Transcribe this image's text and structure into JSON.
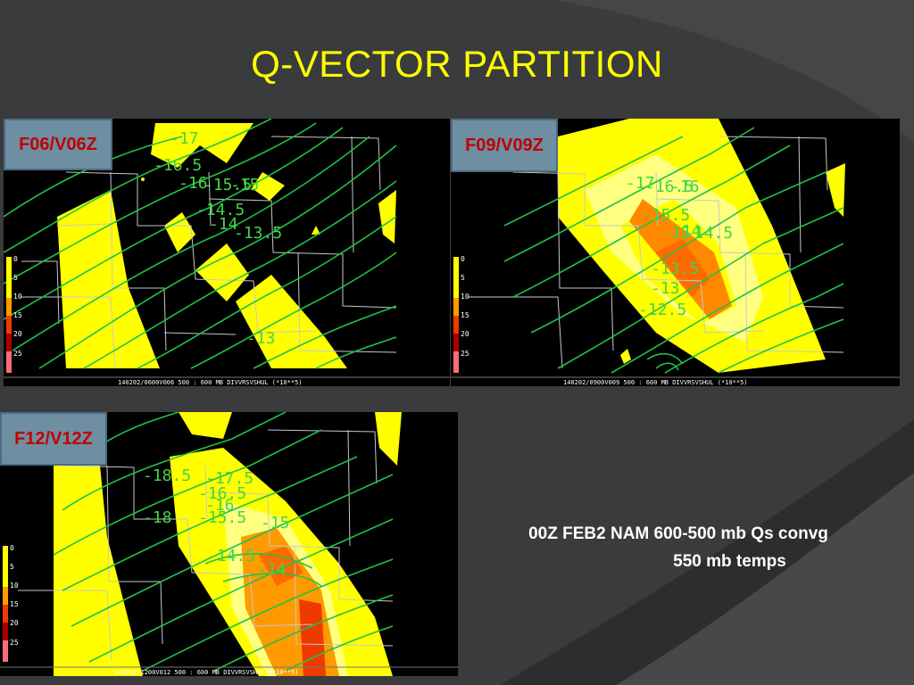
{
  "slide": {
    "title": "Q-VECTOR PARTITION",
    "caption_line1": "00Z FEB2 NAM 600-500 mb Qs convg",
    "caption_line2": "550 mb temps"
  },
  "colors": {
    "title": "#ffff00",
    "label_text": "#c00000",
    "label_bg": "#6e8ea2",
    "contour": "#1fc24a",
    "fill_yellow": "#ffff00",
    "fill_lightyellow": "#ffff80",
    "fill_orange": "#ff9a00",
    "fill_darkorange": "#ff6a00",
    "fill_red": "#ee3a00"
  },
  "scale": {
    "ticks": [
      "0",
      "5",
      "10",
      "15",
      "20",
      "25"
    ]
  },
  "panels": [
    {
      "label": "F06/V06Z",
      "footer": "140202/0600V006  500 : 600 MB  DIVVRSVSHUL (*10**5)",
      "contour_labels": [
        "-17",
        "-16.5",
        "-16",
        "-15.5",
        "-15",
        "-14.5",
        "-14",
        "-13.5",
        "-13"
      ]
    },
    {
      "label": "F09/V09Z",
      "footer": "140202/0900V009  500 : 600 MB  DIVVRSVSHUL (*10**5)",
      "contour_labels": [
        "-17",
        "-16.5",
        "-16",
        "-15.5",
        "-15",
        "-14.5",
        "-14",
        "-13.5",
        "-13",
        "-12.5"
      ]
    },
    {
      "label": "F12/V12Z",
      "footer": "140202/1200V012  500 : 600 MB  DIVVRSVSHUL (*10**5)",
      "contour_labels": [
        "-18.5",
        "-18",
        "-17.5",
        "-16.5",
        "-16",
        "-15.5",
        "-15",
        "-14.5",
        "-14"
      ]
    }
  ]
}
